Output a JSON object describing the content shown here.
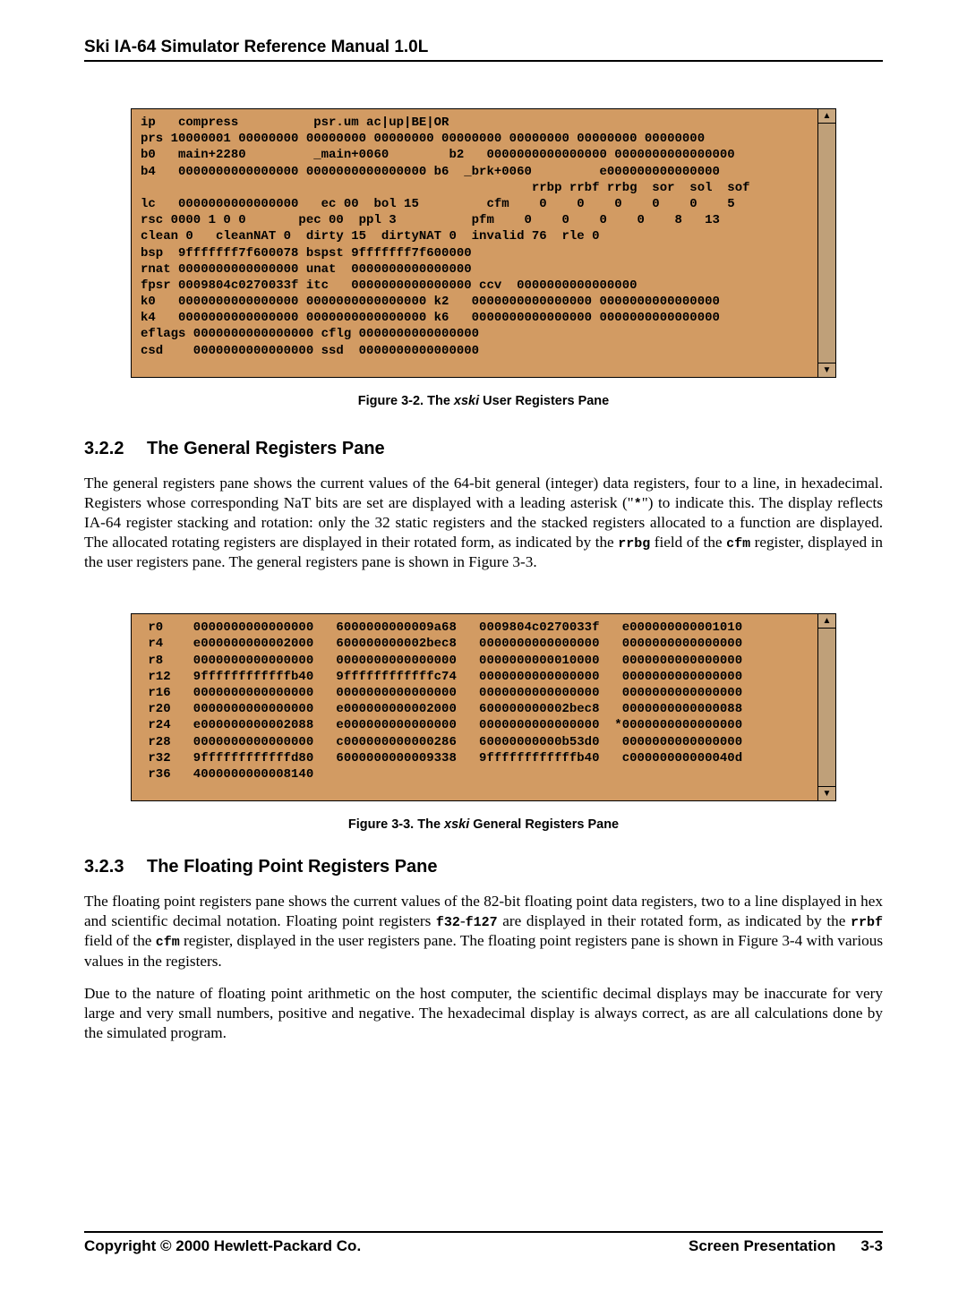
{
  "header": {
    "title": "Ski IA-64 Simulator Reference Manual 1.0L"
  },
  "terminal1": {
    "bg_color": "#d29b63",
    "scrollbar_color": "#bfa079",
    "lines": [
      "ip   compress          psr.um ac|up|BE|OR",
      "prs 10000001 00000000 00000000 00000000 00000000 00000000 00000000 00000000",
      "b0   main+2280         _main+0060        b2   0000000000000000 0000000000000000",
      "b4   0000000000000000 0000000000000000 b6  _brk+0060         e000000000000000",
      "                                                    rrbp rrbf rrbg  sor  sol  sof",
      "lc   0000000000000000   ec 00  bol 15         cfm    0    0    0    0    0    5",
      "rsc 0000 1 0 0       pec 00  ppl 3          pfm    0    0    0    0    8   13",
      "clean 0   cleanNAT 0  dirty 15  dirtyNAT 0  invalid 76  rle 0",
      "bsp  9fffffff7f600078 bspst 9fffffff7f600000",
      "rnat 0000000000000000 unat  0000000000000000",
      "fpsr 0009804c0270033f itc   0000000000000000 ccv  0000000000000000",
      "k0   0000000000000000 0000000000000000 k2   0000000000000000 0000000000000000",
      "k4   0000000000000000 0000000000000000 k6   0000000000000000 0000000000000000",
      "eflags 0000000000000000 cflg 0000000000000000",
      "csd    0000000000000000 ssd  0000000000000000"
    ]
  },
  "fig1": {
    "prefix": "Figure 3-2. The ",
    "italic": "xski",
    "suffix": " User Registers Pane"
  },
  "section322": {
    "num": "3.2.2",
    "title": "The General Registers Pane",
    "para_parts": [
      "The general registers pane shows the current values of the 64-bit general (integer) data registers, four to a line, in hexadecimal. Registers whose corresponding NaT bits are set are displayed with a leading asterisk (\"",
      "*",
      "\") to indicate this. The display reflects IA-64 register stacking and rotation: only the 32 static registers and the stacked registers allocated to a function are displayed. The allocated rotating registers are displayed in their rotated form, as indicated by the ",
      "rrbg",
      " field of the ",
      "cfm",
      " register, displayed in the user registers pane. The general registers pane is shown in Figure 3-3."
    ]
  },
  "terminal2": {
    "bg_color": "#d29b63",
    "scrollbar_color": "#bfa079",
    "lines": [
      " r0    0000000000000000   6000000000009a68   0009804c0270033f   e000000000001010",
      " r4    e000000000002000   600000000002bec8   0000000000000000   0000000000000000",
      " r8    0000000000000000   0000000000000000   0000000000010000   0000000000000000",
      " r12   9ffffffffffffb40   9ffffffffffffc74   0000000000000000   0000000000000000",
      " r16   0000000000000000   0000000000000000   0000000000000000   0000000000000000",
      " r20   0000000000000000   e000000000002000   600000000002bec8   0000000000000088",
      " r24   e000000000002088   e000000000000000   0000000000000000  *0000000000000000",
      " r28   0000000000000000   c000000000000286   60000000000b53d0   0000000000000000",
      " r32   9ffffffffffffd80   6000000000009338   9ffffffffffffb40   c00000000000040d",
      " r36   4000000000008140"
    ]
  },
  "fig2": {
    "prefix": "Figure 3-3. The ",
    "italic": "xski",
    "suffix": " General Registers Pane"
  },
  "section323": {
    "num": "3.2.3",
    "title": "The Floating Point Registers Pane",
    "para1_parts": [
      "The floating point registers pane shows the current values of the 82-bit floating point data registers, two to a line displayed in hex and scientific decimal notation. Floating point registers ",
      "f32",
      "-",
      "f127",
      " are displayed in their rotated form, as indicated by the ",
      "rrbf",
      " field of the ",
      "cfm",
      " register, displayed in the user registers pane. The floating point registers pane is shown in Figure 3-4 with various values in the registers."
    ],
    "para2": "Due to the nature of floating point arithmetic on the host computer, the scientific decimal displays may be inaccurate for very large and very small numbers, positive and negative. The hexadecimal display is always correct, as are all calculations done by the simulated program."
  },
  "footer": {
    "left": "Copyright © 2000 Hewlett-Packard Co.",
    "right_label": "Screen Presentation",
    "right_page": "3-3"
  }
}
